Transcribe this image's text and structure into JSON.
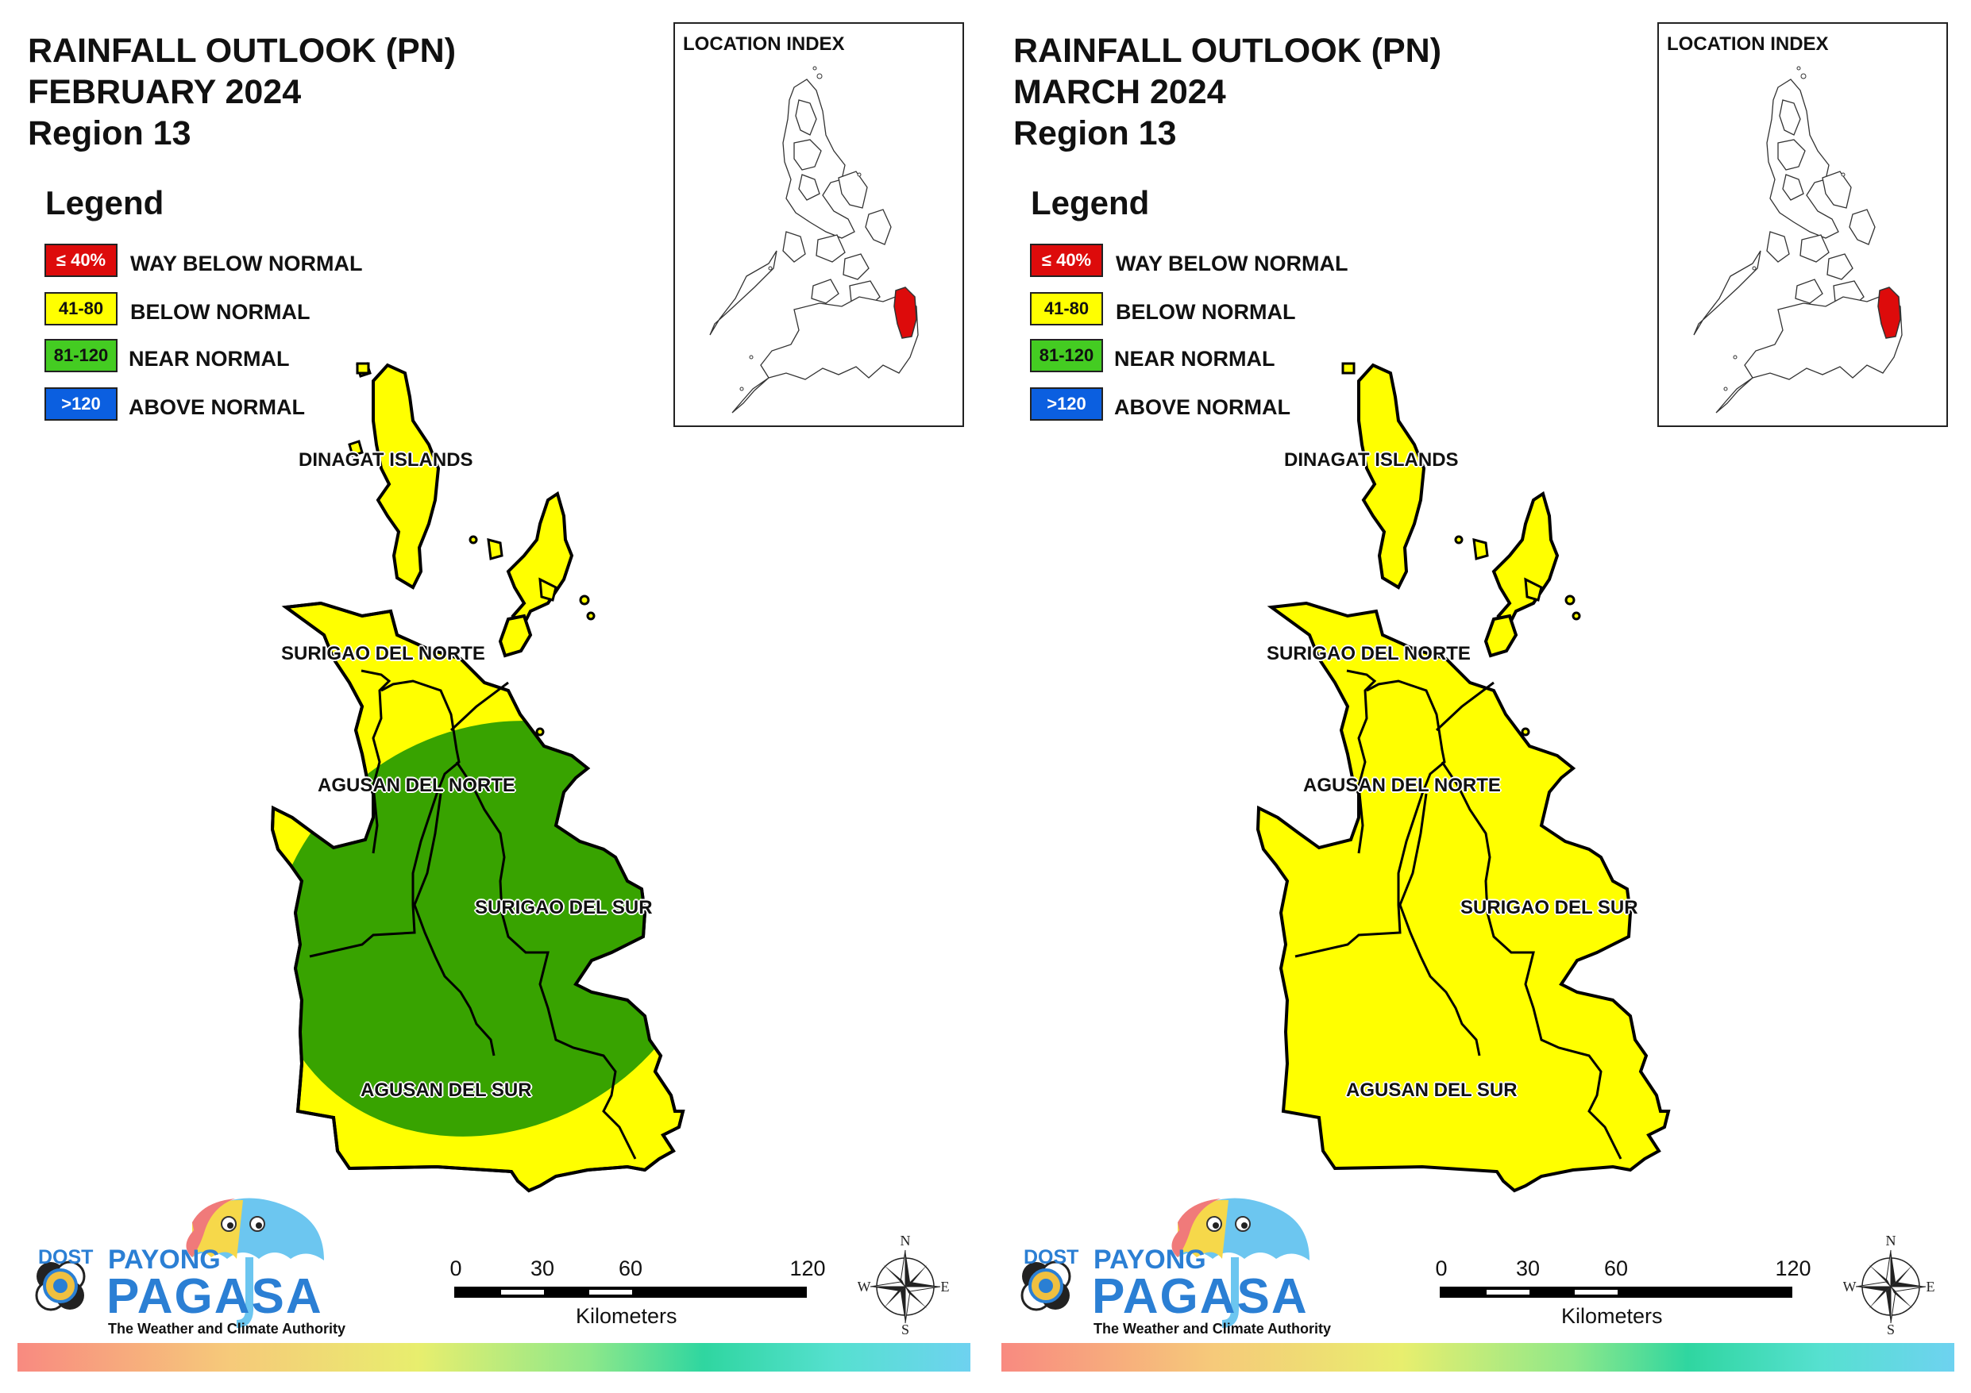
{
  "panels": [
    {
      "title_line1": "RAINFALL OUTLOOK (PN)",
      "title_line2": "FEBRUARY 2024",
      "title_line3": "Region 13"
    },
    {
      "title_line1": "RAINFALL OUTLOOK (PN)",
      "title_line2": "MARCH 2024",
      "title_line3": "Region 13"
    }
  ],
  "legend": {
    "title": "Legend",
    "items": [
      {
        "swatch": "≤ 40%",
        "label": "WAY BELOW NORMAL",
        "color": "#dd0b0b",
        "text_color": "#ffffff"
      },
      {
        "swatch": "41-80",
        "label": "BELOW NORMAL",
        "color": "#ffff00",
        "text_color": "#111111"
      },
      {
        "swatch": "81-120",
        "label": "NEAR NORMAL",
        "color": "#44cc22",
        "text_color": "#111111"
      },
      {
        "swatch": ">120",
        "label": "ABOVE NORMAL",
        "color": "#0b5fe0",
        "text_color": "#ffffff"
      }
    ]
  },
  "location_index": {
    "title": "LOCATION INDEX",
    "highlight_color": "#dd0b0b"
  },
  "provinces": {
    "dinagat": "DINAGAT ISLANDS",
    "surigao_norte": "SURIGAO DEL NORTE",
    "agusan_norte": "AGUSAN DEL NORTE",
    "surigao_sur": "SURIGAO DEL SUR",
    "agusan_sur": "AGUSAN DEL SUR"
  },
  "map_colors": {
    "below_normal": "#ffff00",
    "near_normal": "#38a300"
  },
  "scale_bar": {
    "ticks": [
      "0",
      "30",
      "60",
      "120"
    ],
    "unit": "Kilometers"
  },
  "compass": {
    "n": "N",
    "s": "S",
    "e": "E",
    "w": "W"
  },
  "logo": {
    "dost": "DOST",
    "payong": "PAYONG",
    "pagasa": "PAGASA",
    "tagline": "The Weather and Climate Authority"
  }
}
